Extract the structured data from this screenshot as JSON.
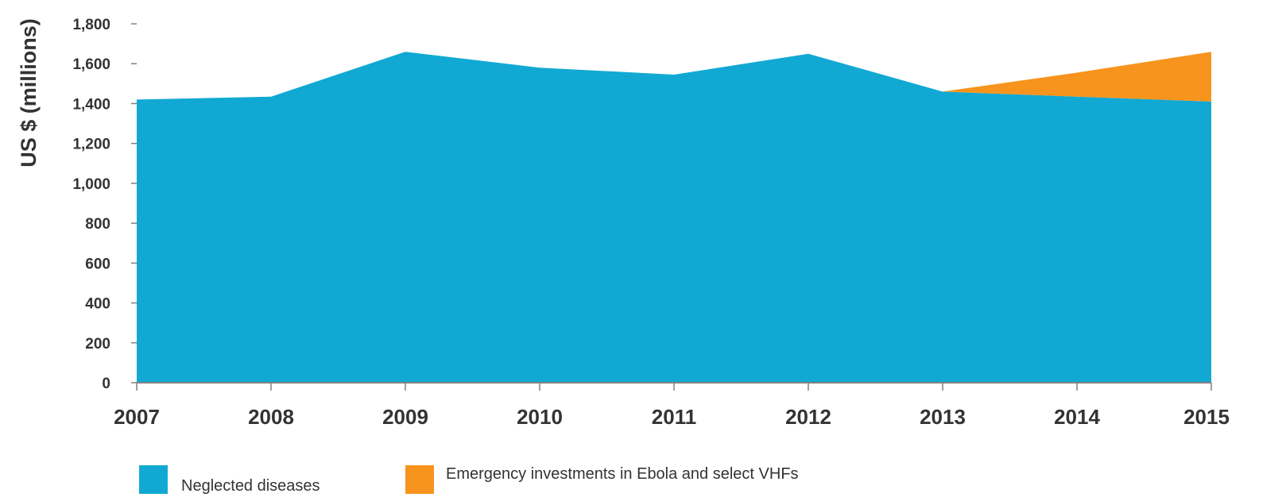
{
  "chart_data": {
    "type": "area",
    "x": [
      "2007",
      "2008",
      "2009",
      "2010",
      "2011",
      "2012",
      "2013",
      "2014",
      "2015"
    ],
    "ylabel": "US $ (millions)",
    "xlabel": "",
    "ylim": [
      0,
      1800
    ],
    "yticks": [
      0,
      200,
      400,
      600,
      800,
      1000,
      1200,
      1400,
      1600,
      1800
    ],
    "ytick_labels": [
      "0",
      "200",
      "400",
      "600",
      "800",
      "1,000",
      "1,200",
      "1,400",
      "1,600",
      "1,800"
    ],
    "stacked": true,
    "grid": false,
    "legend_position": "bottom",
    "series": [
      {
        "name": "Neglected diseases",
        "color": "#11a9d3",
        "values": [
          1420,
          1435,
          1660,
          1580,
          1545,
          1650,
          1460,
          1435,
          1410
        ]
      },
      {
        "name": "Emergency investments in Ebola and select VHFs",
        "color": "#f7941d",
        "values": [
          0,
          0,
          0,
          0,
          0,
          0,
          0,
          120,
          250
        ]
      }
    ]
  }
}
